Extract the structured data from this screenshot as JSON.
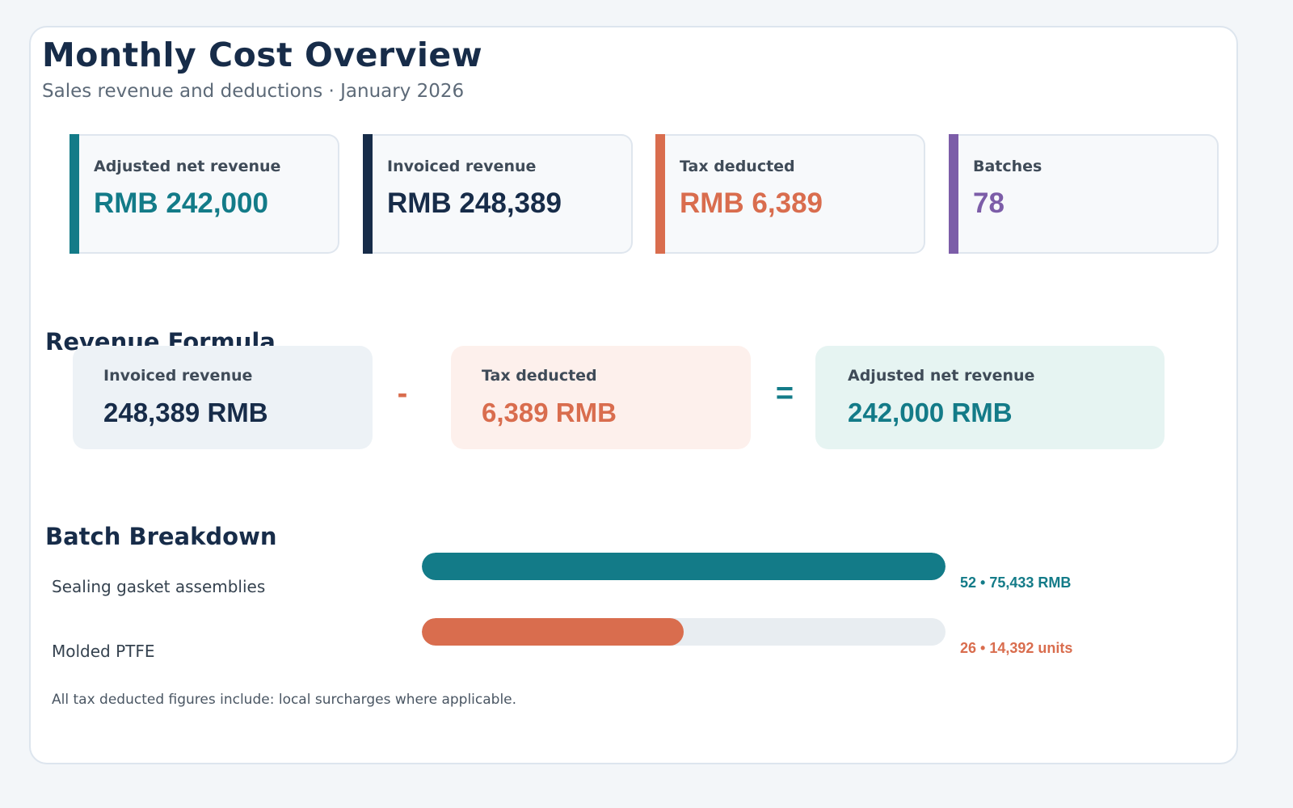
{
  "header": {
    "title": "Monthly Cost Overview",
    "subtitle": "Sales revenue and deductions · January 2026"
  },
  "kpis": [
    {
      "label": "Adjusted net revenue",
      "value": "RMB 242,000",
      "color": "#137b88"
    },
    {
      "label": "Invoiced revenue",
      "value": "RMB 248,389",
      "color": "#172c49"
    },
    {
      "label": "Tax deducted",
      "value": "RMB 6,389",
      "color": "#d96d4e"
    },
    {
      "label": "Batches",
      "value": "78",
      "color": "#7c5da8"
    }
  ],
  "equation": {
    "section_title": "Revenue Formula",
    "invoiced": {
      "label": "Invoiced revenue",
      "value": "248,389 RMB"
    },
    "minus": "-",
    "tax": {
      "label": "Tax deducted",
      "value": "6,389 RMB"
    },
    "equals": "=",
    "net": {
      "label": "Adjusted net revenue",
      "value": "242,000 RMB"
    }
  },
  "products": {
    "section_title": "Batch Breakdown",
    "items": [
      {
        "label": "Sealing gasket assemblies",
        "value": "52 • 75,433 RMB",
        "share": 1.0,
        "color": "#137b88"
      },
      {
        "label": "Molded PTFE",
        "value": "26 • 14,392 units",
        "share": 0.5,
        "color": "#d96d4e"
      }
    ]
  },
  "footnote": "All tax deducted figures include: local surcharges where applicable."
}
